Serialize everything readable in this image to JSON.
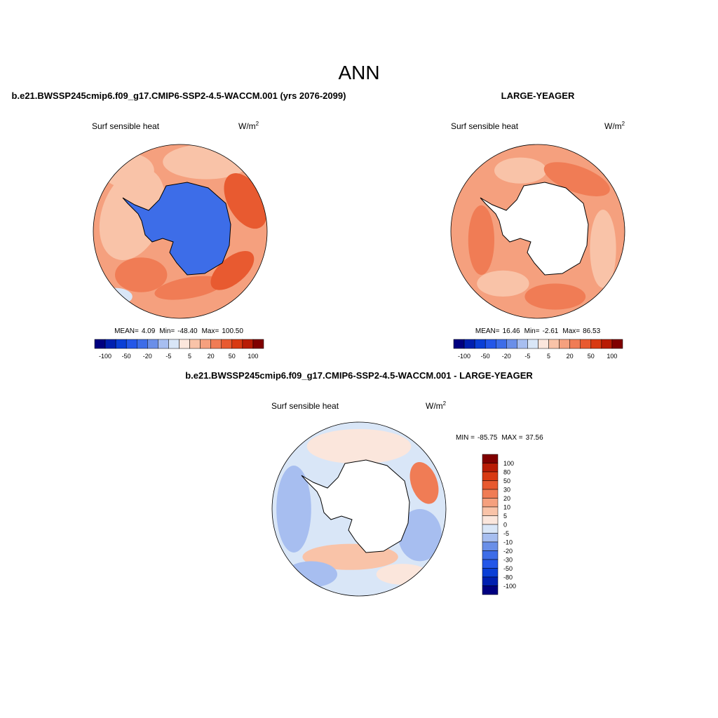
{
  "title": "ANN",
  "colors": [
    "#000080",
    "#0020b0",
    "#0a3fd6",
    "#2457e8",
    "#3d6de8",
    "#6a8fe8",
    "#a7bef0",
    "#d9e6f7",
    "#fbe6dc",
    "#f9c3a8",
    "#f5a07e",
    "#f07c55",
    "#e85a30",
    "#d83a12",
    "#b81c05",
    "#800000"
  ],
  "panels": [
    {
      "title": "b.e21.BWSSP245cmip6.f09_g17.CMIP6-SSP2-4.5-WACCM.001 (yrs 2076-2099)",
      "variable": "Surf sensible heat",
      "units": {
        "base": "W/m",
        "sup": "2"
      },
      "stats": [
        {
          "label": "MEAN=",
          "value": "4.09"
        },
        {
          "label": "Min=",
          "value": "-48.40"
        },
        {
          "label": "Max=",
          "value": "100.50"
        }
      ],
      "colorbar_labels": [
        "-100",
        "-50",
        "-20",
        "-5",
        "5",
        "20",
        "50",
        "100"
      ]
    },
    {
      "title": "LARGE-YEAGER",
      "variable": "Surf sensible heat",
      "units": {
        "base": "W/m",
        "sup": "2"
      },
      "stats": [
        {
          "label": "MEAN=",
          "value": "16.46"
        },
        {
          "label": "Min=",
          "value": "-2.61"
        },
        {
          "label": "Max=",
          "value": "86.53"
        }
      ],
      "colorbar_labels": [
        "-100",
        "-50",
        "-20",
        "-5",
        "5",
        "20",
        "50",
        "100"
      ]
    },
    {
      "title": "b.e21.BWSSP245cmip6.f09_g17.CMIP6-SSP2-4.5-WACCM.001 - LARGE-YEAGER",
      "variable": "Surf sensible heat",
      "units": {
        "base": "W/m",
        "sup": "2"
      },
      "stats": [
        {
          "label": "MIN =",
          "value": "-85.75"
        },
        {
          "label": "MAX =",
          "value": "37.56"
        }
      ],
      "colorbar_labels": [
        "100",
        "80",
        "50",
        "30",
        "20",
        "10",
        "5",
        "0",
        "-5",
        "-10",
        "-20",
        "-30",
        "-50",
        "-80",
        "-100"
      ]
    }
  ]
}
